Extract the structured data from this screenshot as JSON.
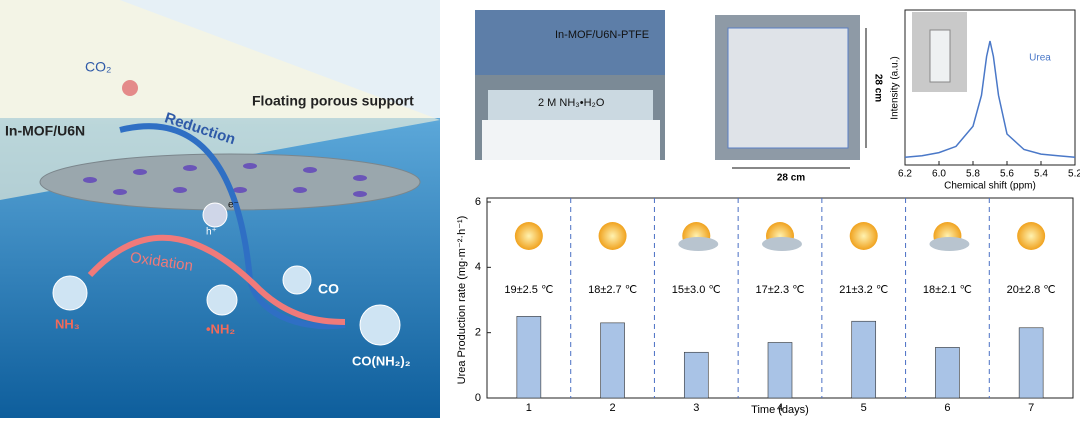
{
  "illustration": {
    "co2": "CO₂",
    "reduction": "Reduction",
    "support": "Floating porous support",
    "mof": "In-MOF/U6N",
    "electron": "e⁻",
    "hole": "h⁺",
    "oxidation": "Oxidation",
    "co": "CO",
    "nh3": "NH₃",
    "nh2": "•NH₂",
    "urea": "CO(NH₂)₂"
  },
  "photos": {
    "membrane": "In-MOF/U6N-PTFE",
    "solution": "2 M NH₃•H₂O",
    "width": "28 cm",
    "height": "28 cm"
  },
  "chart_data": [
    {
      "type": "line",
      "ylabel": "Intensity (a.u.)",
      "xlabel": "Chemical shift (ppm)",
      "annotation": "Urea",
      "color": "#4a78c8",
      "x": [
        6.2,
        6.1,
        6.0,
        5.9,
        5.8,
        5.75,
        5.72,
        5.7,
        5.68,
        5.65,
        5.6,
        5.5,
        5.4,
        5.3,
        5.2
      ],
      "values": [
        0.05,
        0.06,
        0.08,
        0.12,
        0.25,
        0.45,
        0.7,
        0.8,
        0.7,
        0.45,
        0.2,
        0.1,
        0.07,
        0.06,
        0.05
      ],
      "xlim": [
        6.2,
        5.2
      ],
      "xticks": [
        6.2,
        {
          "value": 6.0,
          "label": "6.0"
        },
        5.8,
        5.6,
        5.4,
        5.2
      ],
      "ylim": [
        0,
        1
      ]
    },
    {
      "type": "bar",
      "ylabel": "Urea Production rate (mg·m⁻²·h⁻¹)",
      "xlabel": "Time (days)",
      "color": "#a9c3e6",
      "categories": [
        "1",
        "2",
        "3",
        "4",
        "5",
        "6",
        "7"
      ],
      "values": [
        2.5,
        2.3,
        1.4,
        1.7,
        2.35,
        1.55,
        2.15
      ],
      "annotations": [
        "19±2.5 ℃",
        "18±2.7 ℃",
        "15±3.0 ℃",
        "17±2.3 ℃",
        "21±3.2 ℃",
        "18±2.1 ℃",
        "20±2.8 ℃"
      ],
      "ylim": [
        0,
        6
      ],
      "yticks": [
        0,
        2,
        4,
        6
      ]
    }
  ]
}
